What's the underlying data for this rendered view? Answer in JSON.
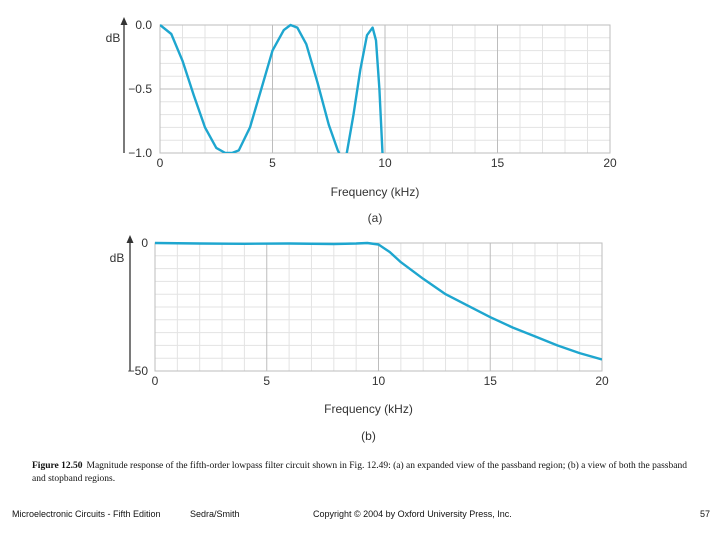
{
  "chart_data": [
    {
      "type": "line",
      "panel_label": "(a)",
      "xlabel": "Frequency (kHz)",
      "ylabel": "dB",
      "xlim": [
        0,
        20
      ],
      "ylim": [
        -1.0,
        0.0
      ],
      "x_ticks": [
        0,
        5,
        10,
        15,
        20
      ],
      "x_tick_labels": [
        "0",
        "5",
        "10",
        "15",
        "20"
      ],
      "y_ticks": [
        0.0,
        -0.5,
        -1.0
      ],
      "y_tick_labels": [
        "0.0",
        "−0.5",
        "−1.0"
      ],
      "grid": true,
      "line_color": "#1ea6cf",
      "series": [
        {
          "x": [
            0,
            0.5,
            1.0,
            1.5,
            2.0,
            2.5,
            2.9,
            3.2,
            3.5,
            4.0,
            4.5,
            5.0,
            5.5,
            5.8,
            6.1,
            6.5,
            7.0,
            7.5,
            7.9,
            8.1,
            8.3,
            8.6,
            8.9,
            9.2,
            9.45,
            9.6,
            9.75,
            9.9
          ],
          "y": [
            0.0,
            -0.07,
            -0.28,
            -0.55,
            -0.8,
            -0.96,
            -1.0,
            -1.0,
            -0.98,
            -0.8,
            -0.5,
            -0.2,
            -0.04,
            0.0,
            -0.02,
            -0.15,
            -0.45,
            -0.78,
            -0.98,
            -1.05,
            -1.0,
            -0.7,
            -0.35,
            -0.08,
            -0.02,
            -0.12,
            -0.5,
            -1.05
          ]
        }
      ]
    },
    {
      "type": "line",
      "panel_label": "(b)",
      "xlabel": "Frequency (kHz)",
      "ylabel": "dB",
      "xlim": [
        0,
        20
      ],
      "ylim": [
        -50,
        0
      ],
      "x_ticks": [
        0,
        5,
        10,
        15,
        20
      ],
      "x_tick_labels": [
        "0",
        "5",
        "10",
        "15",
        "20"
      ],
      "y_ticks": [
        0,
        -50
      ],
      "y_tick_labels": [
        "0",
        "−50"
      ],
      "grid": true,
      "line_color": "#1ea6cf",
      "series": [
        {
          "x": [
            0,
            2,
            4,
            6,
            8,
            9,
            9.5,
            10,
            10.5,
            11,
            12,
            13,
            14,
            15,
            16,
            17,
            18,
            19,
            20
          ],
          "y": [
            0,
            -0.2,
            -0.3,
            -0.2,
            -0.4,
            -0.2,
            0,
            -0.6,
            -3.5,
            -7.5,
            -14,
            -20,
            -24.5,
            -29,
            -33,
            -36.5,
            -40,
            -43,
            -45.5
          ]
        }
      ]
    }
  ],
  "caption": {
    "label": "Figure 12.50",
    "text": "Magnitude response of the fifth-order lowpass filter circuit shown in Fig. 12.49: (a) an expanded view of the passband region; (b) a view of both the passband and stopband regions."
  },
  "footer": {
    "book": "Microelectronic Circuits - Fifth Edition",
    "authors": "Sedra/Smith",
    "copyright": "Copyright © 2004 by Oxford University Press, Inc.",
    "page": "57"
  }
}
